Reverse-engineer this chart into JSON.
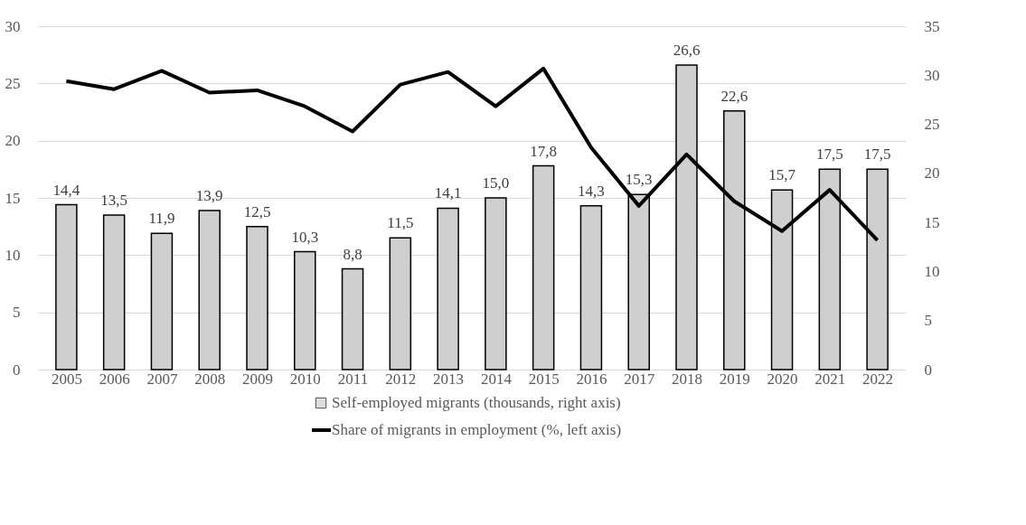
{
  "chart_data": {
    "type": "bar",
    "categories": [
      "2005",
      "2006",
      "2007",
      "2008",
      "2009",
      "2010",
      "2011",
      "2012",
      "2013",
      "2014",
      "2015",
      "2016",
      "2017",
      "2018",
      "2019",
      "2020",
      "2021",
      "2022"
    ],
    "series": [
      {
        "name": "Self-employed migrants (thousands, right axis)",
        "color": "#d0cfd0",
        "values": [
          14.4,
          13.5,
          11.9,
          13.9,
          12.5,
          10.3,
          8.8,
          11.5,
          14.1,
          15.0,
          17.8,
          14.3,
          15.3,
          26.6,
          22.6,
          15.7,
          17.5,
          17.5
        ],
        "value_labels": [
          "14,4",
          "13,5",
          "11,9",
          "13,9",
          "12,5",
          "10,3",
          "8,8",
          "11,5",
          "14,1",
          "15,0",
          "17,8",
          "14,3",
          "15,3",
          "26,6",
          "22,6",
          "15,7",
          "17,5",
          "17,5"
        ]
      },
      {
        "name": "Share of migrants in employment (%, left axis)",
        "type": "line",
        "color": "#000000",
        "values": [
          25.2,
          24.5,
          26.1,
          24.2,
          24.4,
          23.0,
          20.8,
          24.9,
          26.0,
          23.0,
          26.3,
          19.4,
          14.3,
          18.8,
          14.7,
          12.1,
          15.7,
          11.3
        ]
      }
    ],
    "ylim": [
      0,
      30
    ],
    "yticks": [
      0,
      5,
      10,
      15,
      20,
      25,
      30
    ],
    "y2lim": [
      0,
      35
    ],
    "y2ticks": [
      0,
      5,
      10,
      15,
      20,
      25,
      30,
      35
    ],
    "grid": "y",
    "legend": "bottom",
    "marker": "none",
    "line_style": "solid"
  }
}
